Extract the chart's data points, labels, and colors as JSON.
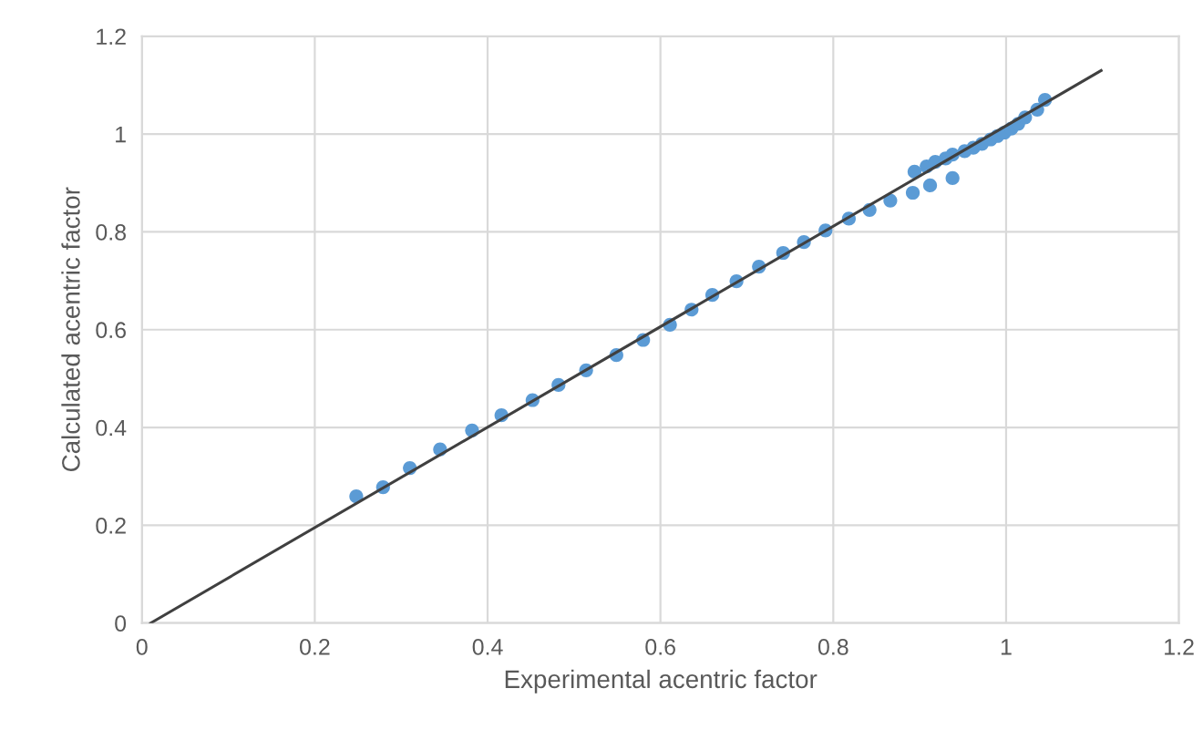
{
  "chart_data": {
    "type": "scatter",
    "xlabel": "Experimental acentric factor",
    "ylabel": "Calculated acentric factor",
    "xlim": [
      0,
      1.2
    ],
    "ylim": [
      0,
      1.2
    ],
    "xticks": [
      0,
      0.2,
      0.4,
      0.6,
      0.8,
      1,
      1.2
    ],
    "yticks": [
      0,
      0.2,
      0.4,
      0.6,
      0.8,
      1,
      1.2
    ],
    "grid": true,
    "legend": false,
    "series": [
      {
        "marker": "circle",
        "color": "#5b9bd5",
        "x": [
          0.248,
          0.279,
          0.31,
          0.345,
          0.382,
          0.416,
          0.452,
          0.482,
          0.514,
          0.549,
          0.58,
          0.611,
          0.636,
          0.66,
          0.688,
          0.714,
          0.742,
          0.766,
          0.791,
          0.818,
          0.842,
          0.866,
          0.892,
          0.912,
          0.938,
          0.894,
          0.908,
          0.918,
          0.93,
          0.938,
          0.952,
          0.962,
          0.972,
          0.982,
          0.99,
          0.998,
          1.006,
          1.014,
          1.022,
          1.036,
          1.045
        ],
        "values": [
          0.259,
          0.278,
          0.317,
          0.355,
          0.394,
          0.425,
          0.456,
          0.487,
          0.517,
          0.548,
          0.579,
          0.61,
          0.641,
          0.671,
          0.699,
          0.729,
          0.757,
          0.779,
          0.803,
          0.827,
          0.845,
          0.864,
          0.88,
          0.895,
          0.91,
          0.923,
          0.934,
          0.943,
          0.95,
          0.958,
          0.965,
          0.972,
          0.98,
          0.989,
          0.996,
          1.003,
          1.011,
          1.021,
          1.034,
          1.05,
          1.07
        ]
      },
      {
        "type": "line",
        "marker": "none",
        "color": "#404040",
        "line_style": "solid",
        "x": [
          0.01,
          1.11
        ],
        "values": [
          0,
          1.13
        ]
      }
    ]
  }
}
